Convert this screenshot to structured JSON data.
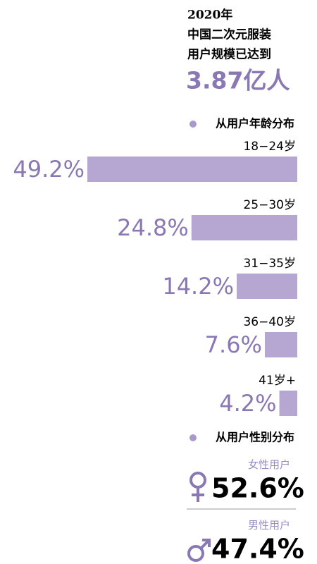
{
  "header": {
    "lines": [
      "2020年",
      "中国二次元服装",
      "用户规模已达到"
    ],
    "headline": "3.87亿人"
  },
  "chart_data": {
    "type": "hbar",
    "title": "从用户年龄分布",
    "categories": [
      "18−24岁",
      "25−30岁",
      "31−35岁",
      "36−40岁",
      "41岁+"
    ],
    "values": [
      49.2,
      24.8,
      14.2,
      7.6,
      4.2
    ],
    "value_labels": [
      "49.2%",
      "24.8%",
      "14.2%",
      "7.6%",
      "4.2%"
    ],
    "color": "#b6a6d2"
  },
  "gender": {
    "title": "从用户性别分布",
    "items": [
      {
        "name": "女性用户",
        "share": "52.6%"
      },
      {
        "name": "男性用户",
        "share": "47.4%"
      }
    ]
  }
}
